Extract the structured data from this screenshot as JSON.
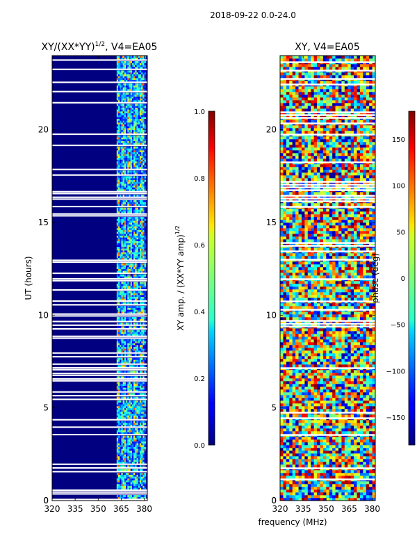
{
  "figure": {
    "suptitle": "2018-09-22 0.0-24.0",
    "shared_xlabel": "frequency (MHz)"
  },
  "chart_data": [
    {
      "type": "heatmap",
      "title_main": "XY/(XX*YY)",
      "title_exp": "1/2",
      "title_suffix": ", V4=EA05",
      "ylabel": "UT (hours)",
      "xlim": [
        320,
        382
      ],
      "ylim": [
        0,
        24
      ],
      "xticks": [
        320,
        335,
        350,
        365,
        380
      ],
      "yticks": [
        0,
        5,
        10,
        15,
        20
      ],
      "colorbar": {
        "label_main": "XY amp. / (XX*YY amp)",
        "label_exp": "1/2",
        "range": [
          0.0,
          1.0
        ],
        "ticks": [
          "0.0",
          "0.2",
          "0.4",
          "0.6",
          "0.8",
          "1.0"
        ],
        "colormap": "jet"
      },
      "band_mhz": [
        362,
        381
      ],
      "band_hours": [
        0,
        24
      ],
      "typical_values": {
        "off_band": 0.0,
        "band": 0.45
      }
    },
    {
      "type": "heatmap",
      "title": "XY, V4=EA05",
      "xlim": [
        320,
        382
      ],
      "ylim": [
        0,
        24
      ],
      "xticks": [
        320,
        335,
        350,
        365,
        380
      ],
      "yticks": [
        0,
        5,
        10,
        15,
        20
      ],
      "colorbar": {
        "label": "phase (deg)",
        "range": [
          -180,
          180
        ],
        "ticks": [
          "−150",
          "−100",
          "−50",
          "0",
          "50",
          "100",
          "150"
        ],
        "colormap": "jet"
      }
    }
  ]
}
